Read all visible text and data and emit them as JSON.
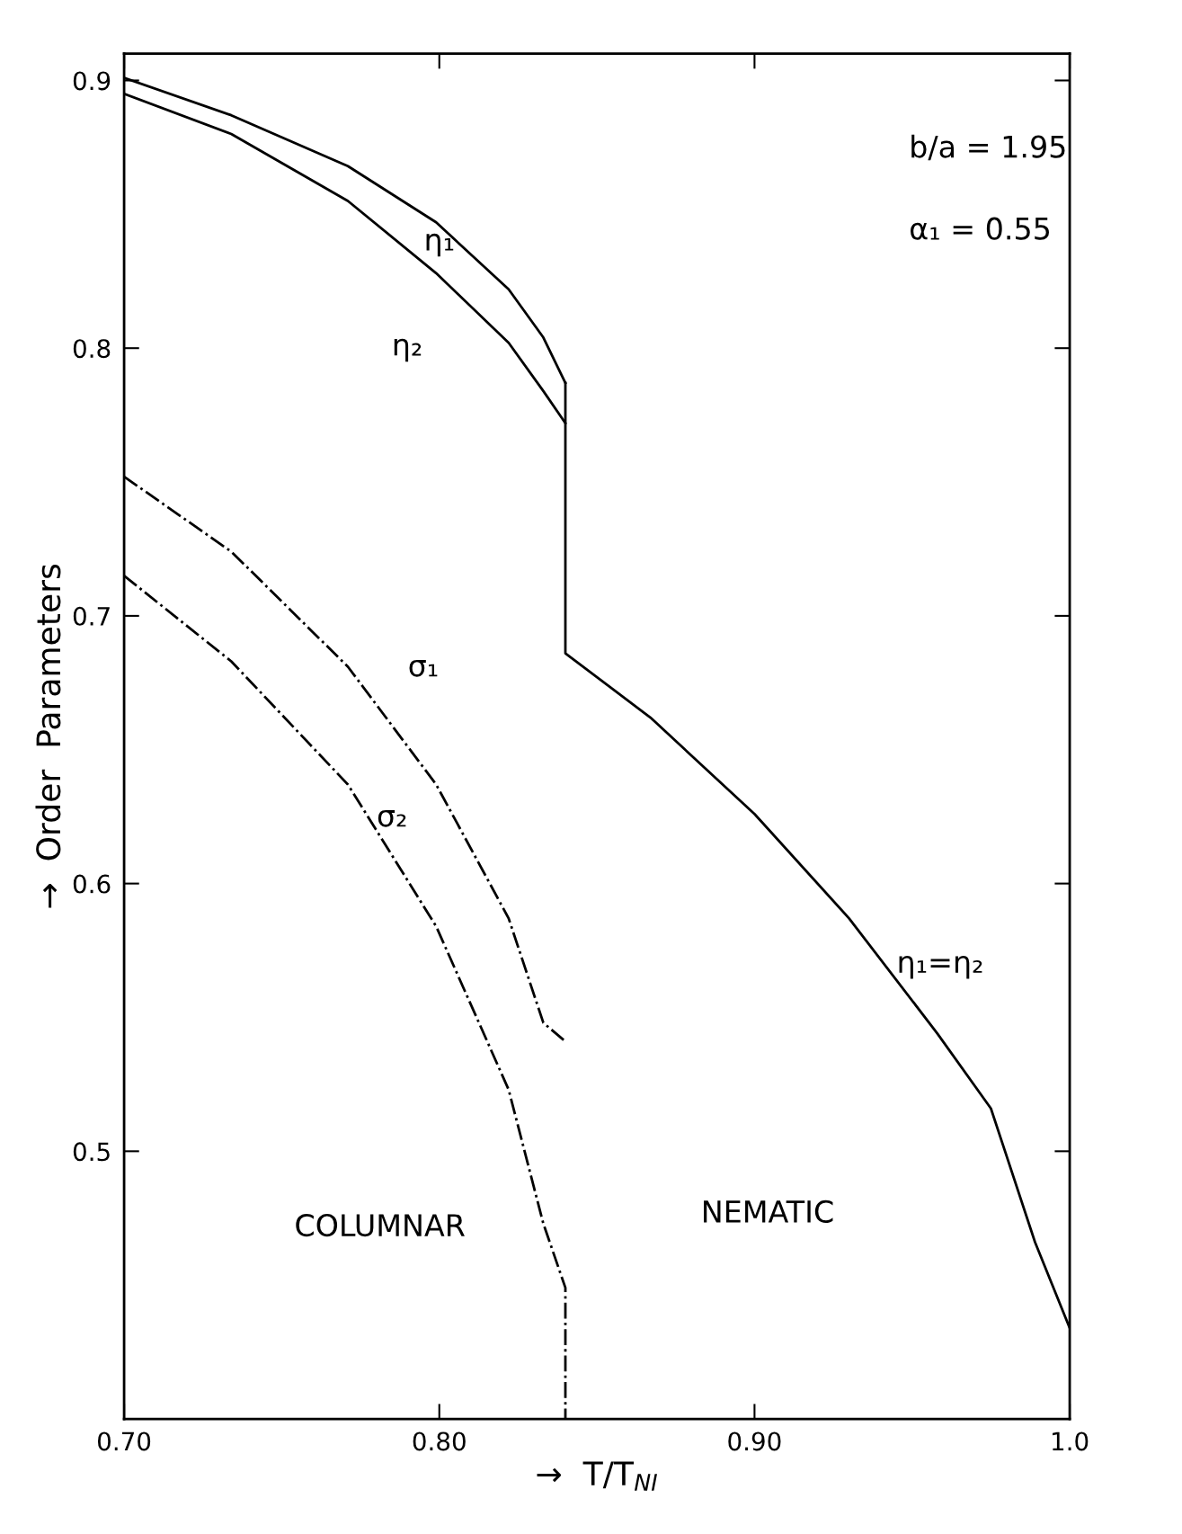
{
  "chart_data": {
    "type": "line",
    "xlabel": "→  T/T$_{NI}$",
    "ylabel": "→  Order  Parameters",
    "xlim": [
      0.7,
      1.0
    ],
    "ylim": [
      0.4,
      0.91
    ],
    "xticks": [
      {
        "value": 0.7,
        "label": "0.70"
      },
      {
        "value": 0.8,
        "label": "0.80"
      },
      {
        "value": 0.9,
        "label": "0.90"
      },
      {
        "value": 1.0,
        "label": "1.0"
      }
    ],
    "yticks": [
      0.5,
      0.6,
      0.7,
      0.8,
      0.9
    ],
    "grid": false,
    "marker": "none",
    "series": [
      {
        "color": "#000000",
        "line_style": "solid",
        "x": [
          0.7,
          0.734,
          0.771,
          0.799,
          0.822,
          0.833,
          0.84
        ],
        "values": [
          0.901,
          0.887,
          0.868,
          0.847,
          0.822,
          0.804,
          0.787
        ]
      },
      {
        "color": "#000000",
        "line_style": "solid",
        "x": [
          0.7,
          0.734,
          0.771,
          0.799,
          0.822,
          0.833,
          0.84
        ],
        "values": [
          0.895,
          0.88,
          0.855,
          0.828,
          0.802,
          0.784,
          0.772
        ]
      },
      {
        "color": "#000000",
        "line_style": "solid",
        "x": [
          0.84,
          0.84,
          0.867,
          0.9,
          0.93,
          0.958,
          0.975,
          0.989,
          1.0
        ],
        "values": [
          0.787,
          0.686,
          0.662,
          0.626,
          0.587,
          0.544,
          0.516,
          0.466,
          0.434
        ]
      },
      {
        "color": "#000000",
        "line_style": "dashdot",
        "x": [
          0.7,
          0.734,
          0.771,
          0.799,
          0.822,
          0.833,
          0.84
        ],
        "values": [
          0.752,
          0.724,
          0.681,
          0.637,
          0.587,
          0.548,
          0.541
        ]
      },
      {
        "color": "#000000",
        "line_style": "dashdot",
        "x": [
          0.7,
          0.734,
          0.771,
          0.799,
          0.822,
          0.833,
          0.84,
          0.84
        ],
        "values": [
          0.715,
          0.683,
          0.637,
          0.584,
          0.523,
          0.473,
          0.449,
          0.4
        ]
      }
    ],
    "annotations": [
      "b/a = 1.95",
      "α₁ = 0.55",
      "η₁",
      "η₂",
      "σ₁",
      "σ₂",
      "η₁=η₂",
      "COLUMNAR",
      "NEMATIC"
    ]
  }
}
